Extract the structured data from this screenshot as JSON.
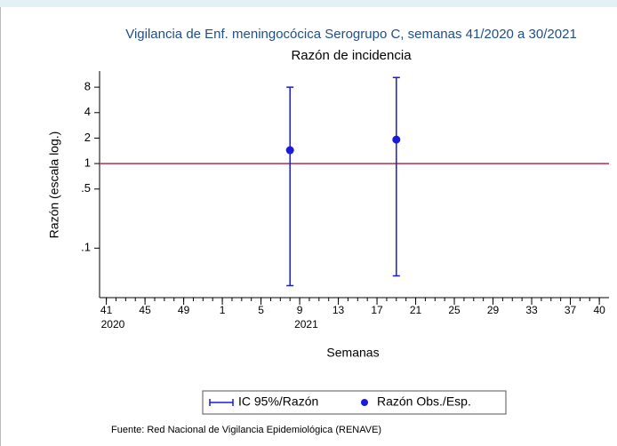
{
  "chart_data": {
    "type": "scatter",
    "title": "Vigilancia de Enf. meningocócica Serogrupo C, semanas 41/2020 a 30/2021",
    "subtitle": "Razón de incidencia",
    "x_label": "Semanas",
    "y_label": "Razón (escala log.)",
    "source": "Fuente: Red Nacional de Vigilancia Epidemiológica (RENAVE)",
    "log_y": true,
    "xlim": [
      -0.7,
      52
    ],
    "ylim": [
      0.026,
      12.4
    ],
    "xticks": [
      {
        "value": 0,
        "label": "41"
      },
      {
        "value": 4,
        "label": "45"
      },
      {
        "value": 8,
        "label": "49"
      },
      {
        "value": 12,
        "label": "1"
      },
      {
        "value": 16,
        "label": "5"
      },
      {
        "value": 20,
        "label": "9"
      },
      {
        "value": 24,
        "label": "13"
      },
      {
        "value": 28,
        "label": "17"
      },
      {
        "value": 32,
        "label": "21"
      },
      {
        "value": 36,
        "label": "25"
      },
      {
        "value": 40,
        "label": "29"
      },
      {
        "value": 44,
        "label": "33"
      },
      {
        "value": 48,
        "label": "37"
      },
      {
        "value": 51,
        "label": "40"
      }
    ],
    "xminorticks": [
      0,
      1,
      2,
      3,
      4,
      5,
      6,
      7,
      8,
      9,
      10,
      11,
      12,
      13,
      14,
      15,
      16,
      17,
      18,
      19,
      20,
      21,
      22,
      23,
      24,
      25,
      26,
      27,
      28,
      29,
      30,
      31,
      32,
      33,
      34,
      35,
      36,
      37,
      38,
      39,
      40,
      41,
      42,
      43,
      44,
      45,
      46,
      47,
      48,
      49,
      50,
      51
    ],
    "xyears": [
      {
        "value": 0,
        "label": "2020"
      },
      {
        "value": 20,
        "label": "2021"
      }
    ],
    "yticks": [
      {
        "value": 0.1,
        "label": ".1"
      },
      {
        "value": 0.5,
        "label": ".5"
      },
      1,
      2,
      4,
      8
    ],
    "reference_line": 1,
    "reference_color": "#b03050",
    "x": [
      19,
      30
    ],
    "series": [
      {
        "name": "IC 95%/Razón",
        "color": "#1a1adc",
        "lower": [
          0.036,
          0.047
        ],
        "upper": [
          8.0,
          10.4
        ]
      },
      {
        "name": "Razón Obs./Esp.",
        "color": "#1a1adc",
        "values": [
          1.44,
          1.92
        ]
      }
    ]
  }
}
